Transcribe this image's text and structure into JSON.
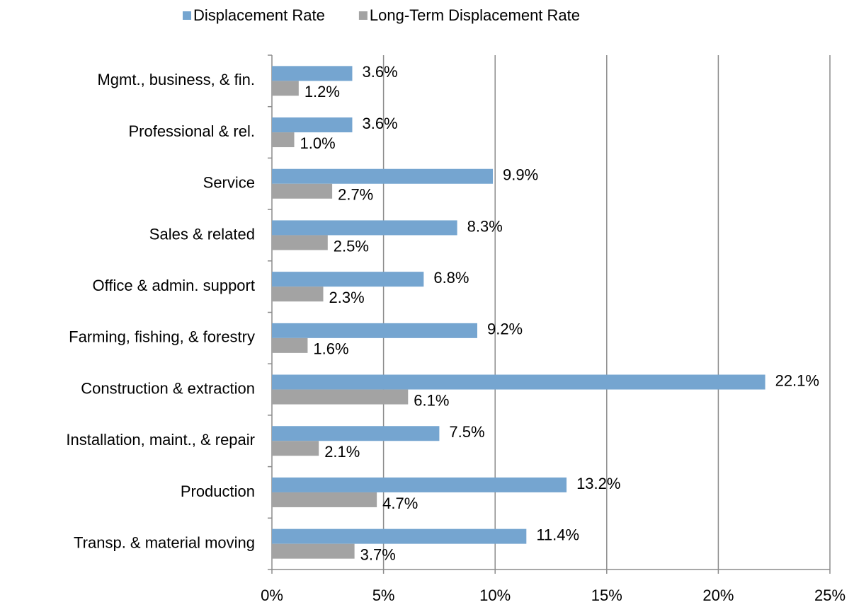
{
  "chart_data": {
    "type": "bar",
    "orientation": "horizontal",
    "categories": [
      "Mgmt., business, & fin.",
      "Professional & rel.",
      "Service",
      "Sales & related",
      "Office & admin. support",
      "Farming, fishing, & forestry",
      "Construction & extraction",
      "Installation, maint., & repair",
      "Production",
      "Transp. & material moving"
    ],
    "series": [
      {
        "name": "Displacement Rate",
        "color": "#75a5d0",
        "values": [
          3.6,
          3.6,
          9.9,
          8.3,
          6.8,
          9.2,
          22.1,
          7.5,
          13.2,
          11.4
        ],
        "value_labels": [
          "3.6%",
          "3.6%",
          "9.9%",
          "8.3%",
          "6.8%",
          "9.2%",
          "22.1%",
          "7.5%",
          "13.2%",
          "11.4%"
        ]
      },
      {
        "name": "Long-Term Displacement Rate",
        "color": "#a3a3a3",
        "values": [
          1.2,
          1.0,
          2.7,
          2.5,
          2.3,
          1.6,
          6.1,
          2.1,
          4.7,
          3.7
        ],
        "value_labels": [
          "1.2%",
          "1.0%",
          "2.7%",
          "2.5%",
          "2.3%",
          "1.6%",
          "6.1%",
          "2.1%",
          "4.7%",
          "3.7%"
        ]
      }
    ],
    "xlim": [
      0,
      25
    ],
    "xticks": [
      {
        "value": 0,
        "label": "0%"
      },
      {
        "value": 5,
        "label": "5%"
      },
      {
        "value": 10,
        "label": "10%"
      },
      {
        "value": 15,
        "label": "15%"
      },
      {
        "value": 20,
        "label": "20%"
      },
      {
        "value": 25,
        "label": "25%"
      }
    ],
    "grid": true,
    "legend": "top"
  }
}
